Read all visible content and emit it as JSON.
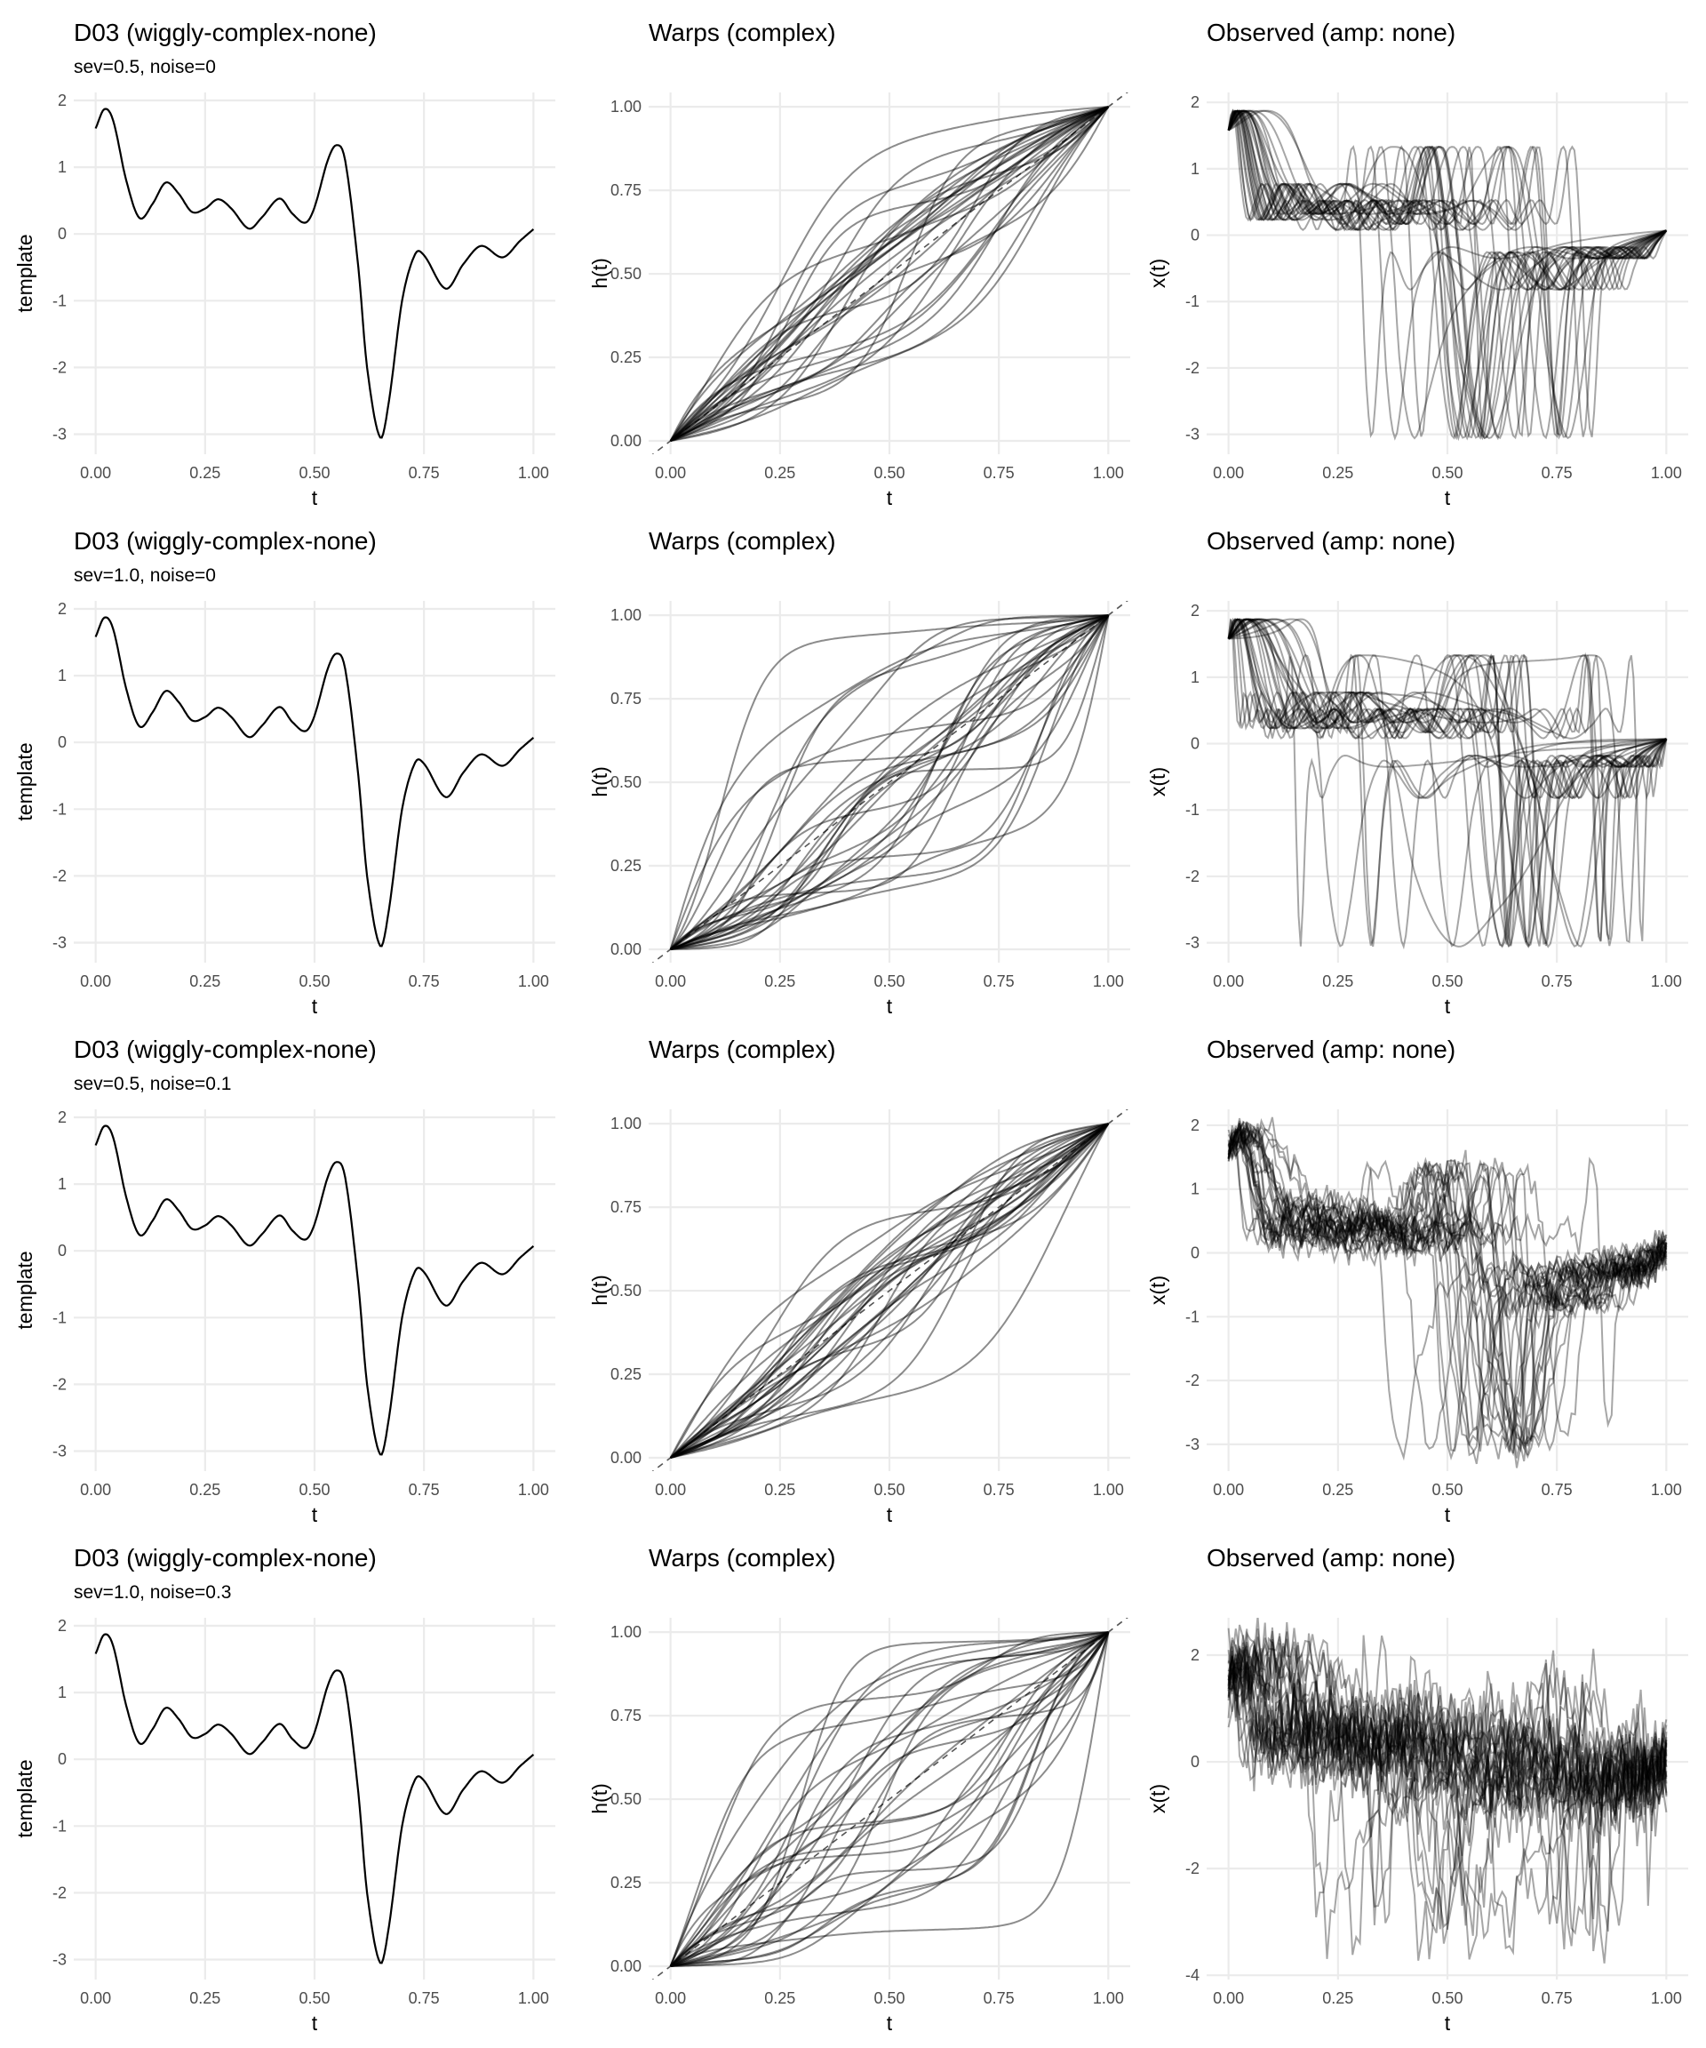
{
  "chart_data": {
    "type": "line",
    "layout": "4 rows x 3 columns",
    "axis_labels": {
      "x": "t",
      "template_y": "template",
      "warp_y": "h(t)",
      "observed_y": "x(t)"
    },
    "x_ticks": [
      "0.00",
      "0.25",
      "0.50",
      "0.75",
      "1.00"
    ],
    "x_tick_values": [
      0,
      0.25,
      0.5,
      0.75,
      1
    ],
    "xlim": [
      -0.05,
      1.05
    ],
    "template_yticks": [
      2,
      1,
      0,
      -1,
      -2,
      -3
    ],
    "template_yticks_labels": [
      "2",
      "1",
      "0",
      "-1",
      "-2",
      "-3"
    ],
    "template_ylim": [
      -3.3,
      2.12
    ],
    "warp_yticks": [
      1,
      0.75,
      0.5,
      0.25,
      0
    ],
    "warp_yticks_labels": [
      "1.00",
      "0.75",
      "0.50",
      "0.25",
      "0.00"
    ],
    "warp_ylim": [
      -0.04,
      1.043
    ],
    "n_curves": 30,
    "template_points": [
      [
        0,
        1.58
      ],
      [
        0.02,
        1.87
      ],
      [
        0.04,
        1.7
      ],
      [
        0.07,
        0.8
      ],
      [
        0.1,
        0.24
      ],
      [
        0.13,
        0.45
      ],
      [
        0.16,
        0.77
      ],
      [
        0.19,
        0.6
      ],
      [
        0.22,
        0.33
      ],
      [
        0.25,
        0.38
      ],
      [
        0.28,
        0.52
      ],
      [
        0.31,
        0.38
      ],
      [
        0.35,
        0.08
      ],
      [
        0.38,
        0.25
      ],
      [
        0.42,
        0.53
      ],
      [
        0.45,
        0.3
      ],
      [
        0.48,
        0.17
      ],
      [
        0.5,
        0.4
      ],
      [
        0.53,
        1.1
      ],
      [
        0.55,
        1.33
      ],
      [
        0.57,
        1.1
      ],
      [
        0.6,
        -0.5
      ],
      [
        0.62,
        -2.0
      ],
      [
        0.65,
        -3.05
      ],
      [
        0.67,
        -2.5
      ],
      [
        0.7,
        -1.0
      ],
      [
        0.73,
        -0.3
      ],
      [
        0.75,
        -0.32
      ],
      [
        0.8,
        -0.82
      ],
      [
        0.84,
        -0.45
      ],
      [
        0.88,
        -0.18
      ],
      [
        0.93,
        -0.35
      ],
      [
        0.97,
        -0.1
      ],
      [
        1.0,
        0.07
      ]
    ],
    "rows": [
      {
        "title": "D03 (wiggly-complex-none)",
        "subtitle": "sev=0.5, noise=0",
        "warp_title": "Warps (complex)",
        "observed_title": "Observed (amp: none)",
        "sev": 0.5,
        "noise": 0,
        "observed_yticks": [
          2,
          1,
          0,
          -1,
          -2,
          -3
        ],
        "observed_yticks_labels": [
          "2",
          "1",
          "0",
          "-1",
          "-2",
          "-3"
        ],
        "observed_ylim": [
          -3.3,
          2.15
        ]
      },
      {
        "title": "D03 (wiggly-complex-none)",
        "subtitle": "sev=1.0, noise=0",
        "warp_title": "Warps (complex)",
        "observed_title": "Observed (amp: none)",
        "sev": 1.0,
        "noise": 0,
        "observed_yticks": [
          2,
          1,
          0,
          -1,
          -2,
          -3
        ],
        "observed_yticks_labels": [
          "2",
          "1",
          "0",
          "-1",
          "-2",
          "-3"
        ],
        "observed_ylim": [
          -3.3,
          2.15
        ]
      },
      {
        "title": "D03 (wiggly-complex-none)",
        "subtitle": "sev=0.5, noise=0.1",
        "warp_title": "Warps (complex)",
        "observed_title": "Observed (amp: none)",
        "sev": 0.5,
        "noise": 0.1,
        "observed_yticks": [
          2,
          1,
          0,
          -1,
          -2,
          -3
        ],
        "observed_yticks_labels": [
          "2",
          "1",
          "0",
          "-1",
          "-2",
          "-3"
        ],
        "observed_ylim": [
          -3.42,
          2.25
        ]
      },
      {
        "title": "D03 (wiggly-complex-none)",
        "subtitle": "sev=1.0, noise=0.3",
        "warp_title": "Warps (complex)",
        "observed_title": "Observed (amp: none)",
        "sev": 1.0,
        "noise": 0.3,
        "observed_yticks": [
          2,
          0,
          -2,
          -4
        ],
        "observed_yticks_labels": [
          "2",
          "0",
          "-2",
          "-4"
        ],
        "observed_ylim": [
          -4.08,
          2.7
        ]
      }
    ]
  }
}
